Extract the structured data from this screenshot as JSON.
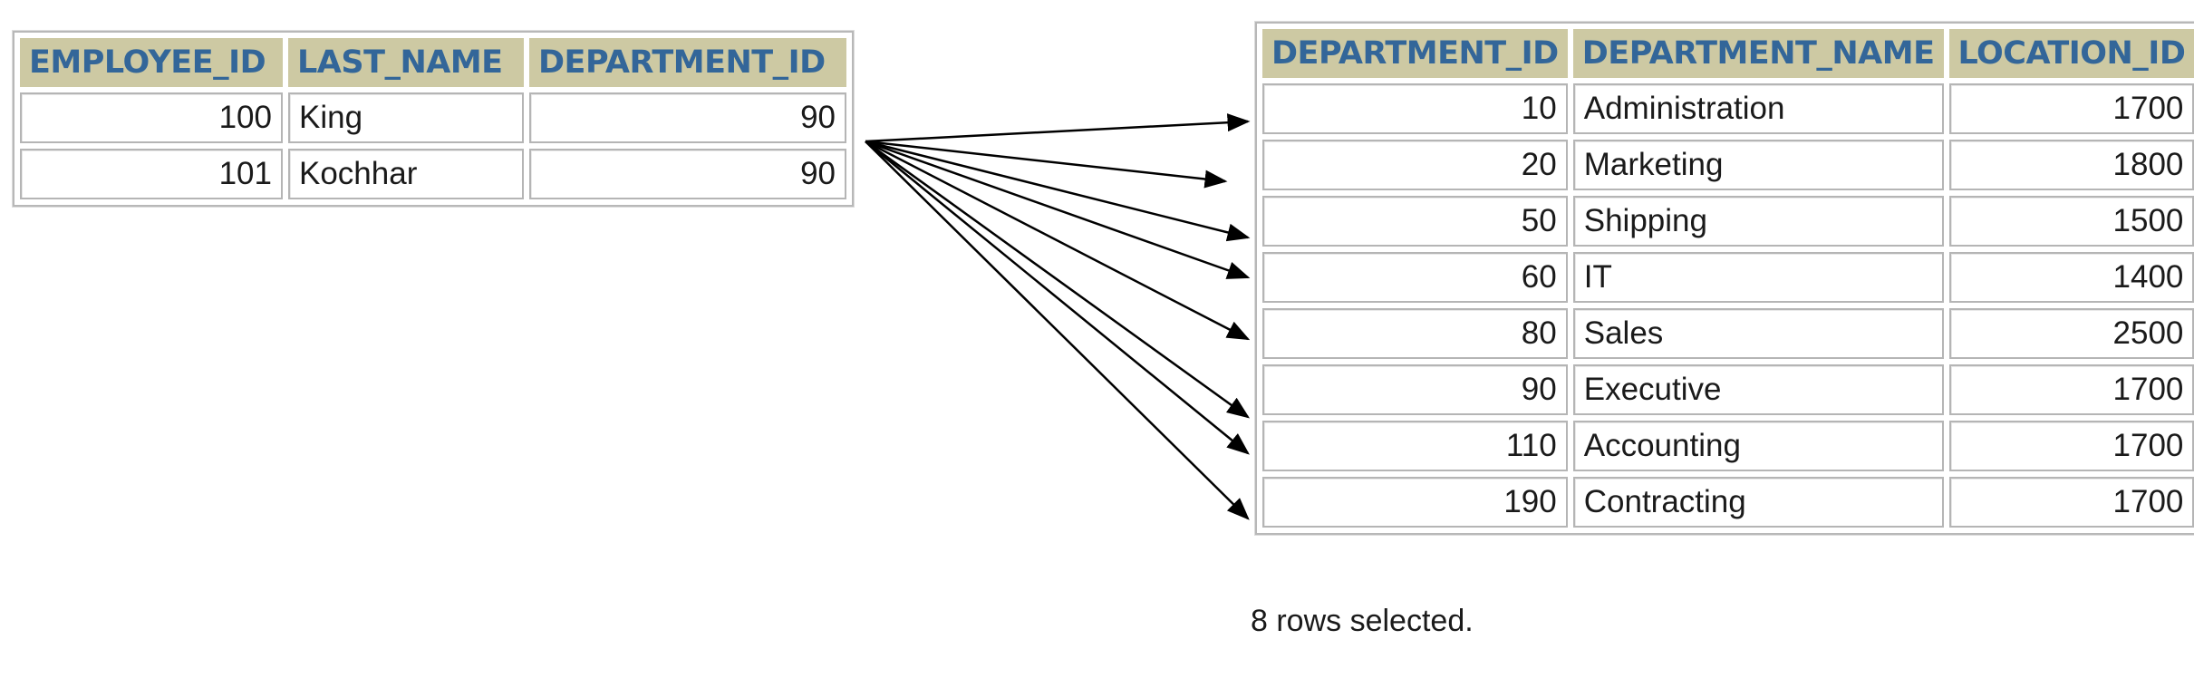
{
  "employees": {
    "headers": [
      "EMPLOYEE_ID",
      "LAST_NAME",
      "DEPARTMENT_ID"
    ],
    "rows": [
      [
        "100",
        "King",
        "90"
      ],
      [
        "101",
        "Kochhar",
        "90"
      ]
    ]
  },
  "departments": {
    "headers": [
      "DEPARTMENT_ID",
      "DEPARTMENT_NAME",
      "LOCATION_ID"
    ],
    "rows": [
      [
        "10",
        "Administration",
        "1700"
      ],
      [
        "20",
        "Marketing",
        "1800"
      ],
      [
        "50",
        "Shipping",
        "1500"
      ],
      [
        "60",
        "IT",
        "1400"
      ],
      [
        "80",
        "Sales",
        "2500"
      ],
      [
        "90",
        "Executive",
        "1700"
      ],
      [
        "110",
        "Accounting",
        "1700"
      ],
      [
        "190",
        "Contracting",
        "1700"
      ]
    ]
  },
  "footer": "8 rows selected.",
  "colors": {
    "header_bg": "#cdc9a3",
    "header_text": "#336699",
    "arrow": "#000000"
  }
}
